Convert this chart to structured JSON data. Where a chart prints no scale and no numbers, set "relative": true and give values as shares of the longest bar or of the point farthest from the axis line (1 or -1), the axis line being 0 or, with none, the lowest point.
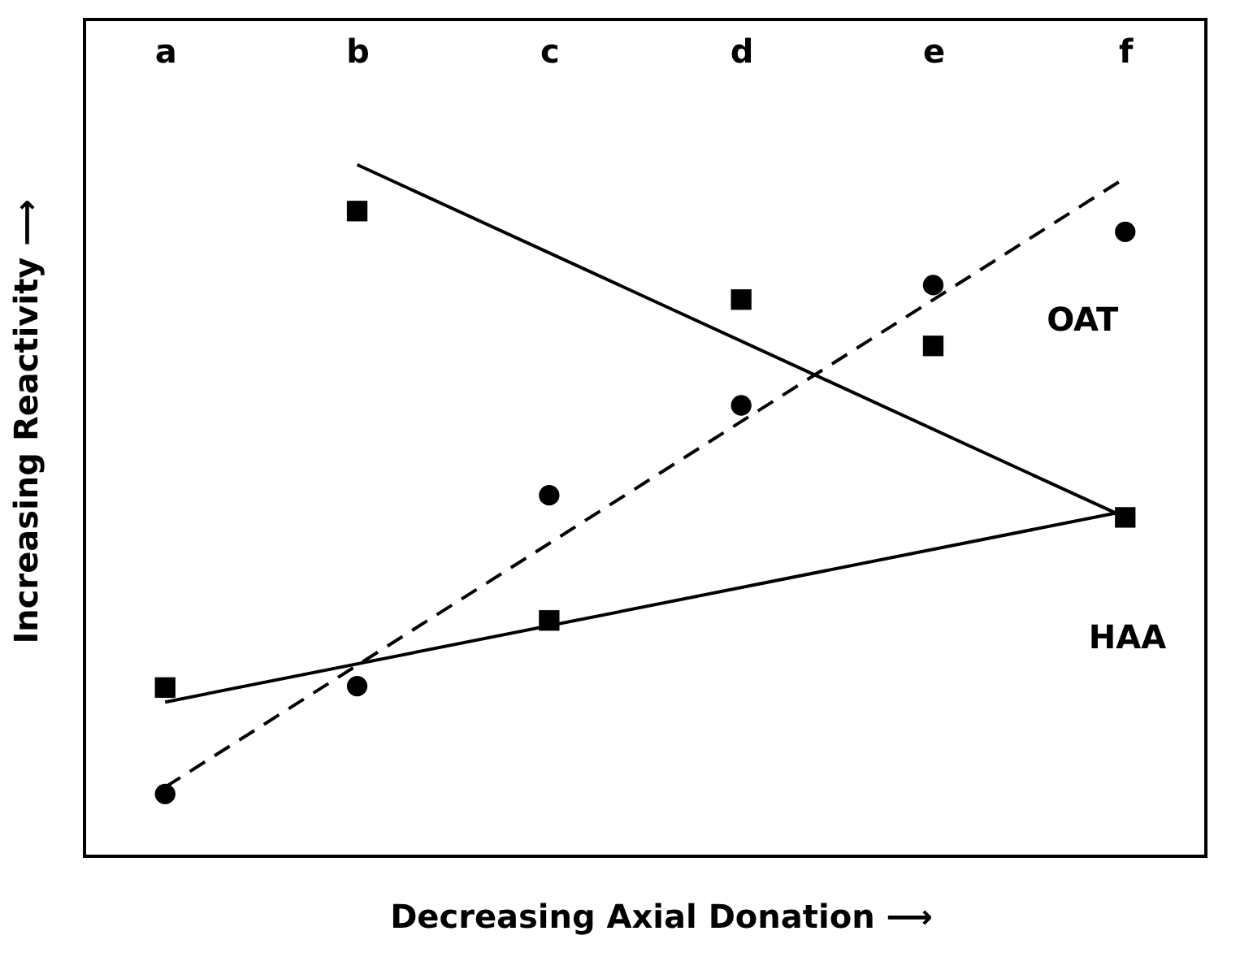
{
  "chart_data": {
    "type": "scatter",
    "relative": true,
    "grid": false,
    "xlabel": "Decreasing Axial Donation ⟶",
    "ylabel": "Increasing Reactivity ⟶",
    "categories": [
      "a",
      "b",
      "c",
      "d",
      "e",
      "f"
    ],
    "series": [
      {
        "marker": "square",
        "color": "#000000",
        "values": [
          0.244,
          0.933,
          0.341,
          0.805,
          0.738,
          0.49
        ]
      },
      {
        "marker": "circle",
        "color": "#000000",
        "values": [
          0.09,
          0.246,
          0.522,
          0.652,
          0.826,
          0.903
        ]
      },
      {
        "type": "line",
        "line_style": "solid",
        "color": "#000000",
        "x": [
          "b",
          "f"
        ],
        "values": [
          1.0,
          0.49
        ]
      },
      {
        "type": "line",
        "line_style": "solid",
        "color": "#000000",
        "x": [
          "a",
          "f"
        ],
        "values": [
          0.223,
          0.499
        ]
      },
      {
        "type": "line",
        "line_style": "dashed",
        "color": "#000000",
        "x": [
          "a",
          "f"
        ],
        "values": [
          0.1,
          0.981
        ]
      }
    ],
    "annotations": [
      "OAT",
      "HAA"
    ]
  }
}
